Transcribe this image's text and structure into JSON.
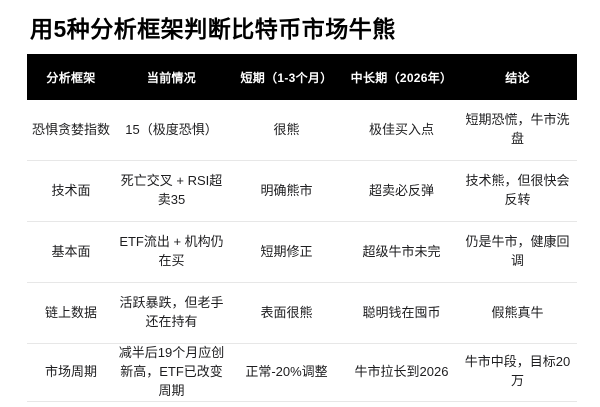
{
  "title": "用5种分析框架判断比特币市场牛熊",
  "chart_data": {
    "type": "table",
    "title": "用5种分析框架判断比特币市场牛熊",
    "columns": [
      "分析框架",
      "当前情况",
      "短期（1-3个月）",
      "中长期（2026年）",
      "结论"
    ],
    "rows": [
      [
        "恐惧贪婪指数",
        "15（极度恐惧）",
        "很熊",
        "极佳买入点",
        "短期恐慌，牛市洗盘"
      ],
      [
        "技术面",
        "死亡交叉 + RSI超卖35",
        "明确熊市",
        "超卖必反弹",
        "技术熊，但很快会反转"
      ],
      [
        "基本面",
        "ETF流出 + 机构仍在买",
        "短期修正",
        "超级牛市未完",
        "仍是牛市，健康回调"
      ],
      [
        "链上数据",
        "活跃暴跌，但老手还在持有",
        "表面很熊",
        "聪明钱在囤币",
        "假熊真牛"
      ],
      [
        "市场周期",
        "减半后19个月应创新高，ETF已改变周期",
        "正常-20%调整",
        "牛市拉长到2026",
        "牛市中段，目标20万"
      ]
    ],
    "layout_hints": {
      "header_style": "solid black bar, white bold text",
      "row_dividers": "thin light gray horizontal lines",
      "grid": "horizontal only"
    }
  },
  "colors": {
    "page_bg": "#ffffff",
    "header_bg": "#000000",
    "header_text": "#ffffff",
    "body_text": "#1d1d1f",
    "divider": "#e7e7e7",
    "title_text": "#000000"
  }
}
